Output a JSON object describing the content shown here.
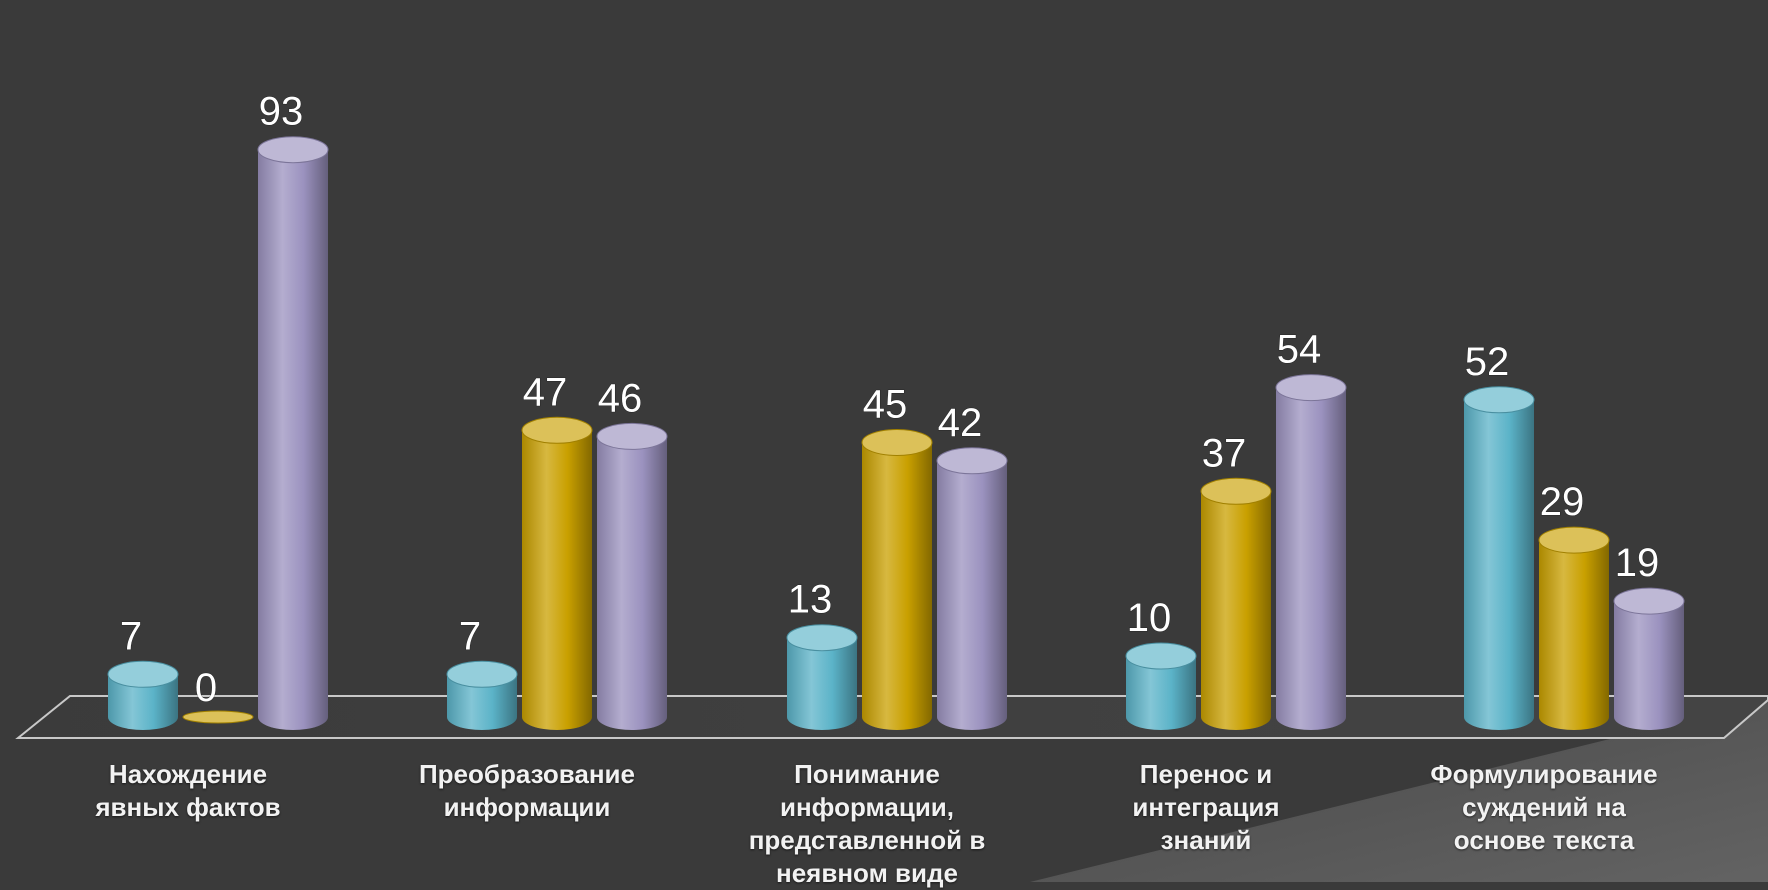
{
  "chart_data": {
    "type": "bar",
    "title": "",
    "xlabel": "",
    "ylabel": "",
    "ylim": [
      0,
      100
    ],
    "grid": false,
    "legend": "none",
    "categories": [
      "Нахождение\nявных фактов",
      "Преобразование\nинформации",
      "Понимание\nинформации,\nпредставленной в\nнеявном виде",
      "Перенос и\nинтеграция\nзнаний",
      "Формулирование\nсуждений на\nоснове текста"
    ],
    "series": [
      {
        "color": "#5bb3c8",
        "values": [
          7,
          7,
          13,
          10,
          52
        ]
      },
      {
        "color": "#c9a000",
        "values": [
          0,
          47,
          45,
          37,
          29
        ]
      },
      {
        "color": "#9b92bf",
        "values": [
          93,
          46,
          42,
          54,
          19
        ]
      }
    ]
  }
}
